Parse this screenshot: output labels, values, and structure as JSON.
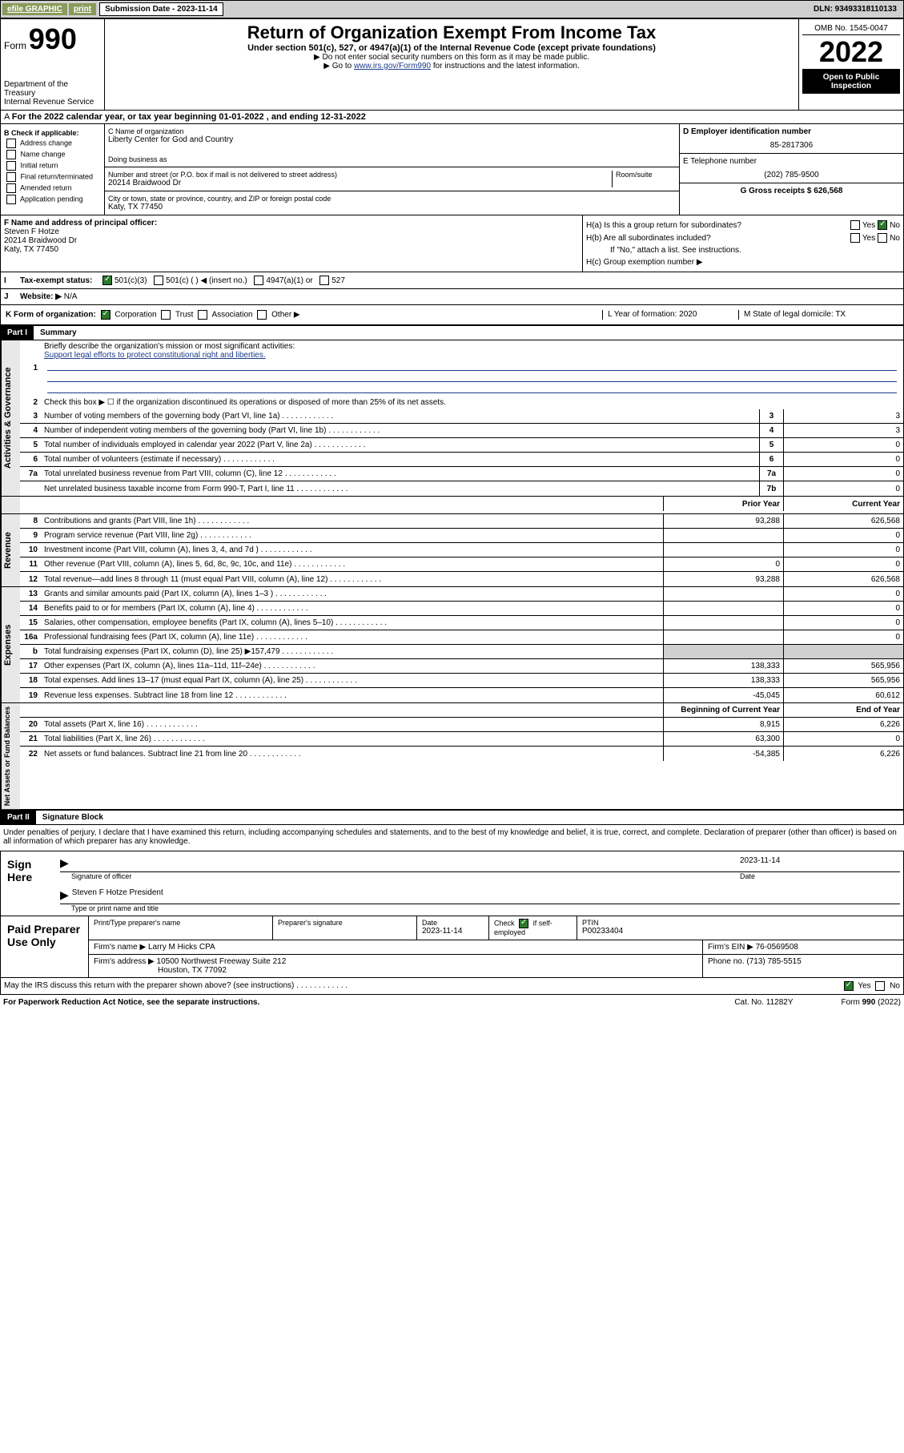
{
  "topbar": {
    "efile": "efile GRAPHIC",
    "print": "print",
    "sub_date_label": "Submission Date - 2023-11-14",
    "dln": "DLN: 93493318110133"
  },
  "header": {
    "form_label": "Form",
    "form_no": "990",
    "dept": "Department of the Treasury",
    "irs": "Internal Revenue Service",
    "title": "Return of Organization Exempt From Income Tax",
    "subtitle": "Under section 501(c), 527, or 4947(a)(1) of the Internal Revenue Code (except private foundations)",
    "note1": "▶ Do not enter social security numbers on this form as it may be made public.",
    "note2_pre": "▶ Go to ",
    "note2_link": "www.irs.gov/Form990",
    "note2_post": " for instructions and the latest information.",
    "omb": "OMB No. 1545-0047",
    "year": "2022",
    "inspection": "Open to Public Inspection"
  },
  "period": {
    "text": "For the 2022 calendar year, or tax year beginning 01-01-2022   , and ending 12-31-2022"
  },
  "box_b": {
    "label": "B Check if applicable:",
    "items": [
      "Address change",
      "Name change",
      "Initial return",
      "Final return/terminated",
      "Amended return",
      "Application pending"
    ]
  },
  "box_c": {
    "name_label": "C Name of organization",
    "name": "Liberty Center for God and Country",
    "dba_label": "Doing business as",
    "addr_label": "Number and street (or P.O. box if mail is not delivered to street address)",
    "room_label": "Room/suite",
    "addr": "20214 Braidwood Dr",
    "city_label": "City or town, state or province, country, and ZIP or foreign postal code",
    "city": "Katy, TX  77450"
  },
  "box_d": {
    "ein_label": "D Employer identification number",
    "ein": "85-2817306",
    "phone_label": "E Telephone number",
    "phone": "(202) 785-9500",
    "gross_label": "G Gross receipts $ 626,568"
  },
  "box_f": {
    "label": "F  Name and address of principal officer:",
    "name": "Steven F Hotze",
    "addr1": "20214 Braidwood Dr",
    "addr2": "Katy, TX  77450"
  },
  "box_h": {
    "ha": "H(a)  Is this a group return for subordinates?",
    "hb": "H(b)  Are all subordinates included?",
    "hb_note": "If \"No,\" attach a list. See instructions.",
    "hc": "H(c)  Group exemption number ▶",
    "yes": "Yes",
    "no": "No"
  },
  "box_i": {
    "label": "Tax-exempt status:",
    "opts": [
      "501(c)(3)",
      "501(c) (  ) ◀ (insert no.)",
      "4947(a)(1) or",
      "527"
    ]
  },
  "box_j": {
    "label": "Website: ▶",
    "val": "N/A"
  },
  "box_k": {
    "label": "K Form of organization:",
    "opts": [
      "Corporation",
      "Trust",
      "Association",
      "Other ▶"
    ],
    "l_label": "L Year of formation: 2020",
    "m_label": "M State of legal domicile: TX"
  },
  "part1": {
    "header": "Part I",
    "title": "Summary",
    "q1": "Briefly describe the organization's mission or most significant activities:",
    "q1_ans": "Support legal efforts to protect constitutional right and liberties.",
    "q2": "Check this box ▶ ☐  if the organization discontinued its operations or disposed of more than 25% of its net assets."
  },
  "governance": {
    "label": "Activities & Governance",
    "rows": [
      {
        "n": "3",
        "t": "Number of voting members of the governing body (Part VI, line 1a)",
        "box": "3",
        "v": "3"
      },
      {
        "n": "4",
        "t": "Number of independent voting members of the governing body (Part VI, line 1b)",
        "box": "4",
        "v": "3"
      },
      {
        "n": "5",
        "t": "Total number of individuals employed in calendar year 2022 (Part V, line 2a)",
        "box": "5",
        "v": "0"
      },
      {
        "n": "6",
        "t": "Total number of volunteers (estimate if necessary)",
        "box": "6",
        "v": "0"
      },
      {
        "n": "7a",
        "t": "Total unrelated business revenue from Part VIII, column (C), line 12",
        "box": "7a",
        "v": "0"
      },
      {
        "n": "",
        "t": "Net unrelated business taxable income from Form 990-T, Part I, line 11",
        "box": "7b",
        "v": "0"
      }
    ]
  },
  "twocol_header": {
    "prior": "Prior Year",
    "current": "Current Year"
  },
  "revenue": {
    "label": "Revenue",
    "rows": [
      {
        "n": "8",
        "t": "Contributions and grants (Part VIII, line 1h)",
        "p": "93,288",
        "c": "626,568"
      },
      {
        "n": "9",
        "t": "Program service revenue (Part VIII, line 2g)",
        "p": "",
        "c": "0"
      },
      {
        "n": "10",
        "t": "Investment income (Part VIII, column (A), lines 3, 4, and 7d )",
        "p": "",
        "c": "0"
      },
      {
        "n": "11",
        "t": "Other revenue (Part VIII, column (A), lines 5, 6d, 8c, 9c, 10c, and 11e)",
        "p": "0",
        "c": "0"
      },
      {
        "n": "12",
        "t": "Total revenue—add lines 8 through 11 (must equal Part VIII, column (A), line 12)",
        "p": "93,288",
        "c": "626,568"
      }
    ]
  },
  "expenses": {
    "label": "Expenses",
    "rows": [
      {
        "n": "13",
        "t": "Grants and similar amounts paid (Part IX, column (A), lines 1–3 )",
        "p": "",
        "c": "0"
      },
      {
        "n": "14",
        "t": "Benefits paid to or for members (Part IX, column (A), line 4)",
        "p": "",
        "c": "0"
      },
      {
        "n": "15",
        "t": "Salaries, other compensation, employee benefits (Part IX, column (A), lines 5–10)",
        "p": "",
        "c": "0"
      },
      {
        "n": "16a",
        "t": "Professional fundraising fees (Part IX, column (A), line 11e)",
        "p": "",
        "c": "0"
      },
      {
        "n": "b",
        "t": "Total fundraising expenses (Part IX, column (D), line 25) ▶157,479",
        "p": "shaded",
        "c": "shaded"
      },
      {
        "n": "17",
        "t": "Other expenses (Part IX, column (A), lines 11a–11d, 11f–24e)",
        "p": "138,333",
        "c": "565,956"
      },
      {
        "n": "18",
        "t": "Total expenses. Add lines 13–17 (must equal Part IX, column (A), line 25)",
        "p": "138,333",
        "c": "565,956"
      },
      {
        "n": "19",
        "t": "Revenue less expenses. Subtract line 18 from line 12",
        "p": "-45,045",
        "c": "60,612"
      }
    ]
  },
  "netassets": {
    "label": "Net Assets or Fund Balances",
    "header": {
      "begin": "Beginning of Current Year",
      "end": "End of Year"
    },
    "rows": [
      {
        "n": "20",
        "t": "Total assets (Part X, line 16)",
        "p": "8,915",
        "c": "6,226"
      },
      {
        "n": "21",
        "t": "Total liabilities (Part X, line 26)",
        "p": "63,300",
        "c": "0"
      },
      {
        "n": "22",
        "t": "Net assets or fund balances. Subtract line 21 from line 20",
        "p": "-54,385",
        "c": "6,226"
      }
    ]
  },
  "part2": {
    "header": "Part II",
    "title": "Signature Block",
    "decl": "Under penalties of perjury, I declare that I have examined this return, including accompanying schedules and statements, and to the best of my knowledge and belief, it is true, correct, and complete. Declaration of preparer (other than officer) is based on all information of which preparer has any knowledge."
  },
  "sign": {
    "label": "Sign Here",
    "sig_label": "Signature of officer",
    "date_label": "Date",
    "date": "2023-11-14",
    "name": "Steven F Hotze President",
    "name_label": "Type or print name and title"
  },
  "preparer": {
    "label": "Paid Preparer Use Only",
    "print_label": "Print/Type preparer's name",
    "sig_label": "Preparer's signature",
    "date_label": "Date",
    "date": "2023-11-14",
    "check_label": "Check ",
    "check_suffix": " if self-employed",
    "ptin_label": "PTIN",
    "ptin": "P00233404",
    "firm_label": "Firm's name    ▶",
    "firm": "Larry M Hicks CPA",
    "ein_label": "Firm's EIN ▶ 76-0569508",
    "addr_label": "Firm's address ▶",
    "addr1": "10500 Northwest Freeway Suite 212",
    "addr2": "Houston, TX  77092",
    "phone_label": "Phone no. (713) 785-5515"
  },
  "footer": {
    "discuss": "May the IRS discuss this return with the preparer shown above? (see instructions)",
    "yes": "Yes",
    "no": "No",
    "paperwork": "For Paperwork Reduction Act Notice, see the separate instructions.",
    "cat": "Cat. No. 11282Y",
    "form": "Form 990 (2022)"
  }
}
